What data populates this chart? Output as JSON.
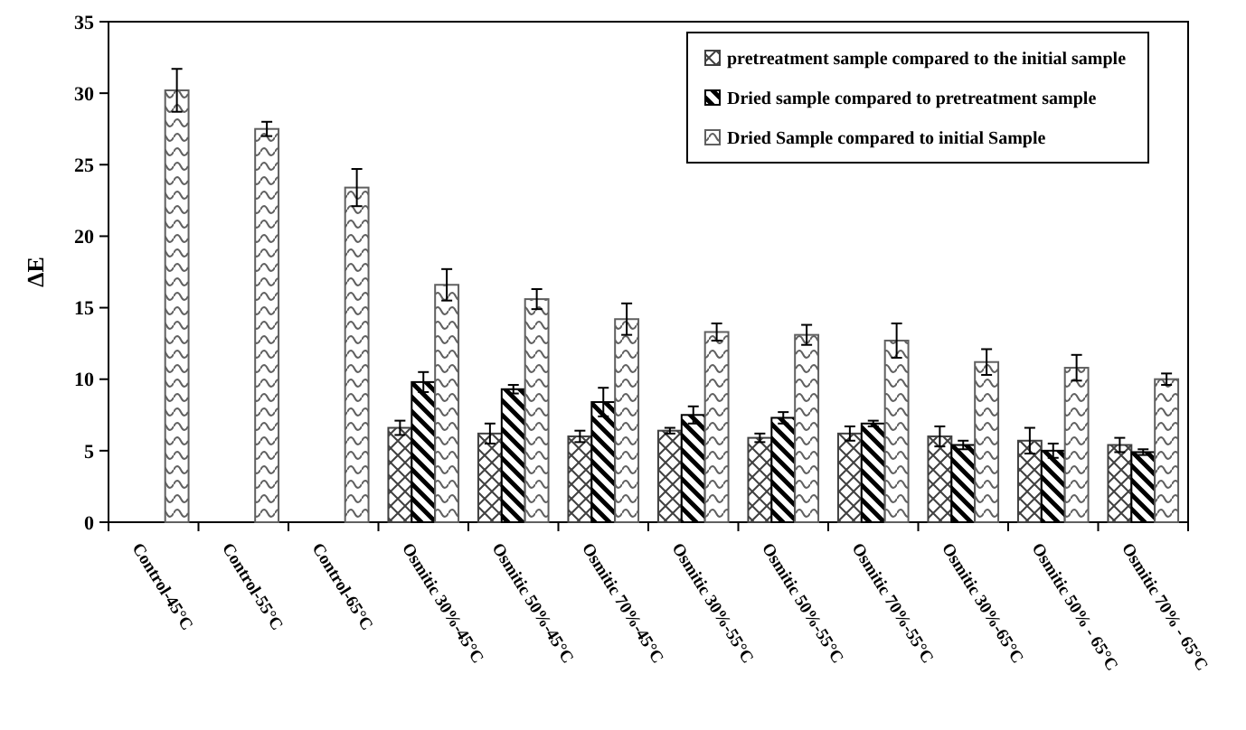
{
  "chart_data": {
    "type": "bar",
    "ylabel": "ΔE",
    "ylim": [
      0,
      35
    ],
    "yticks": [
      0,
      5,
      10,
      15,
      20,
      25,
      30,
      35
    ],
    "legend": "top right",
    "grid": false,
    "categories": [
      "Control-45°C",
      "Control-55°C",
      "Control-65°C",
      "Osmitic 30%-45°C",
      "Osmitic 50%-45°C",
      "Osmitic 70%-45°C",
      "Osmitic 30%-55°C",
      "Osmitic 50%-55°C",
      "Osmitic 70%-55°C",
      "Osmitic 30%-65°C",
      "Osmitic 50% - 65°C",
      "Osmitic 70% - 65°C"
    ],
    "series": [
      {
        "name": "pretreatment sample compared to the initial sample",
        "color": "#404040",
        "values": [
          null,
          null,
          null,
          6.6,
          6.2,
          6.0,
          6.4,
          5.9,
          6.2,
          6.0,
          5.7,
          5.4
        ],
        "errors": [
          null,
          null,
          null,
          0.5,
          0.7,
          0.4,
          0.2,
          0.3,
          0.5,
          0.7,
          0.9,
          0.5
        ]
      },
      {
        "name": "Dried sample compared to pretreatment sample",
        "color": "#000000",
        "values": [
          null,
          null,
          null,
          9.8,
          9.3,
          8.4,
          7.5,
          7.3,
          6.9,
          5.4,
          5.0,
          4.9
        ],
        "errors": [
          null,
          null,
          null,
          0.7,
          0.3,
          1.0,
          0.6,
          0.4,
          0.2,
          0.3,
          0.5,
          0.2
        ]
      },
      {
        "name": "Dried Sample compared to initial Sample",
        "color": "#606060",
        "values": [
          30.2,
          27.5,
          23.4,
          16.6,
          15.6,
          14.2,
          13.3,
          13.1,
          12.7,
          11.2,
          10.8,
          10.0
        ],
        "errors": [
          1.5,
          0.5,
          1.3,
          1.1,
          0.7,
          1.1,
          0.6,
          0.7,
          1.2,
          0.9,
          0.9,
          0.4
        ]
      }
    ]
  }
}
